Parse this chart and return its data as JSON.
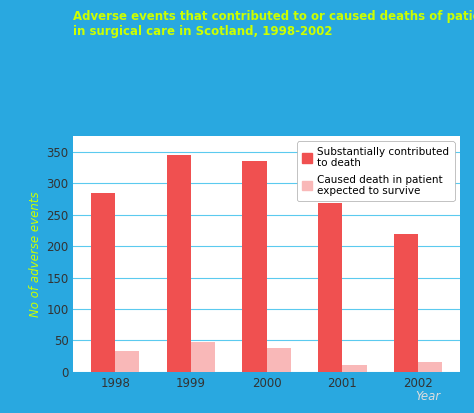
{
  "years": [
    "1998",
    "1999",
    "2000",
    "2001",
    "2002"
  ],
  "red_values": [
    285,
    345,
    335,
    268,
    220
  ],
  "pink_values": [
    33,
    47,
    37,
    10,
    15
  ],
  "red_color": "#F05050",
  "pink_color": "#F9B8B8",
  "background_color": "#29A8E0",
  "plot_bg_color": "#FFFFFF",
  "title_line1": "Adverse events that contributed to or caused deaths of patients",
  "title_line2": "in surgical care in Scotland, 1998-2002",
  "title_color": "#CCFF00",
  "ylabel": "No of adverse events",
  "ylabel_color": "#CCFF00",
  "xlabel": "Year",
  "xlabel_color": "#DDDDDD",
  "legend_label1": "Substantially contributed\nto death",
  "legend_label2": "Caused death in patient\nexpected to survive",
  "ylim": [
    0,
    375
  ],
  "yticks": [
    0,
    50,
    100,
    150,
    200,
    250,
    300,
    350
  ],
  "grid_color": "#5BCAEF",
  "bar_width": 0.32,
  "tick_color": "#333333",
  "legend_fontsize": 7.5,
  "axis_fontsize": 8.5,
  "title_fontsize": 8.5,
  "legend_line_color": "#5BCAEF"
}
